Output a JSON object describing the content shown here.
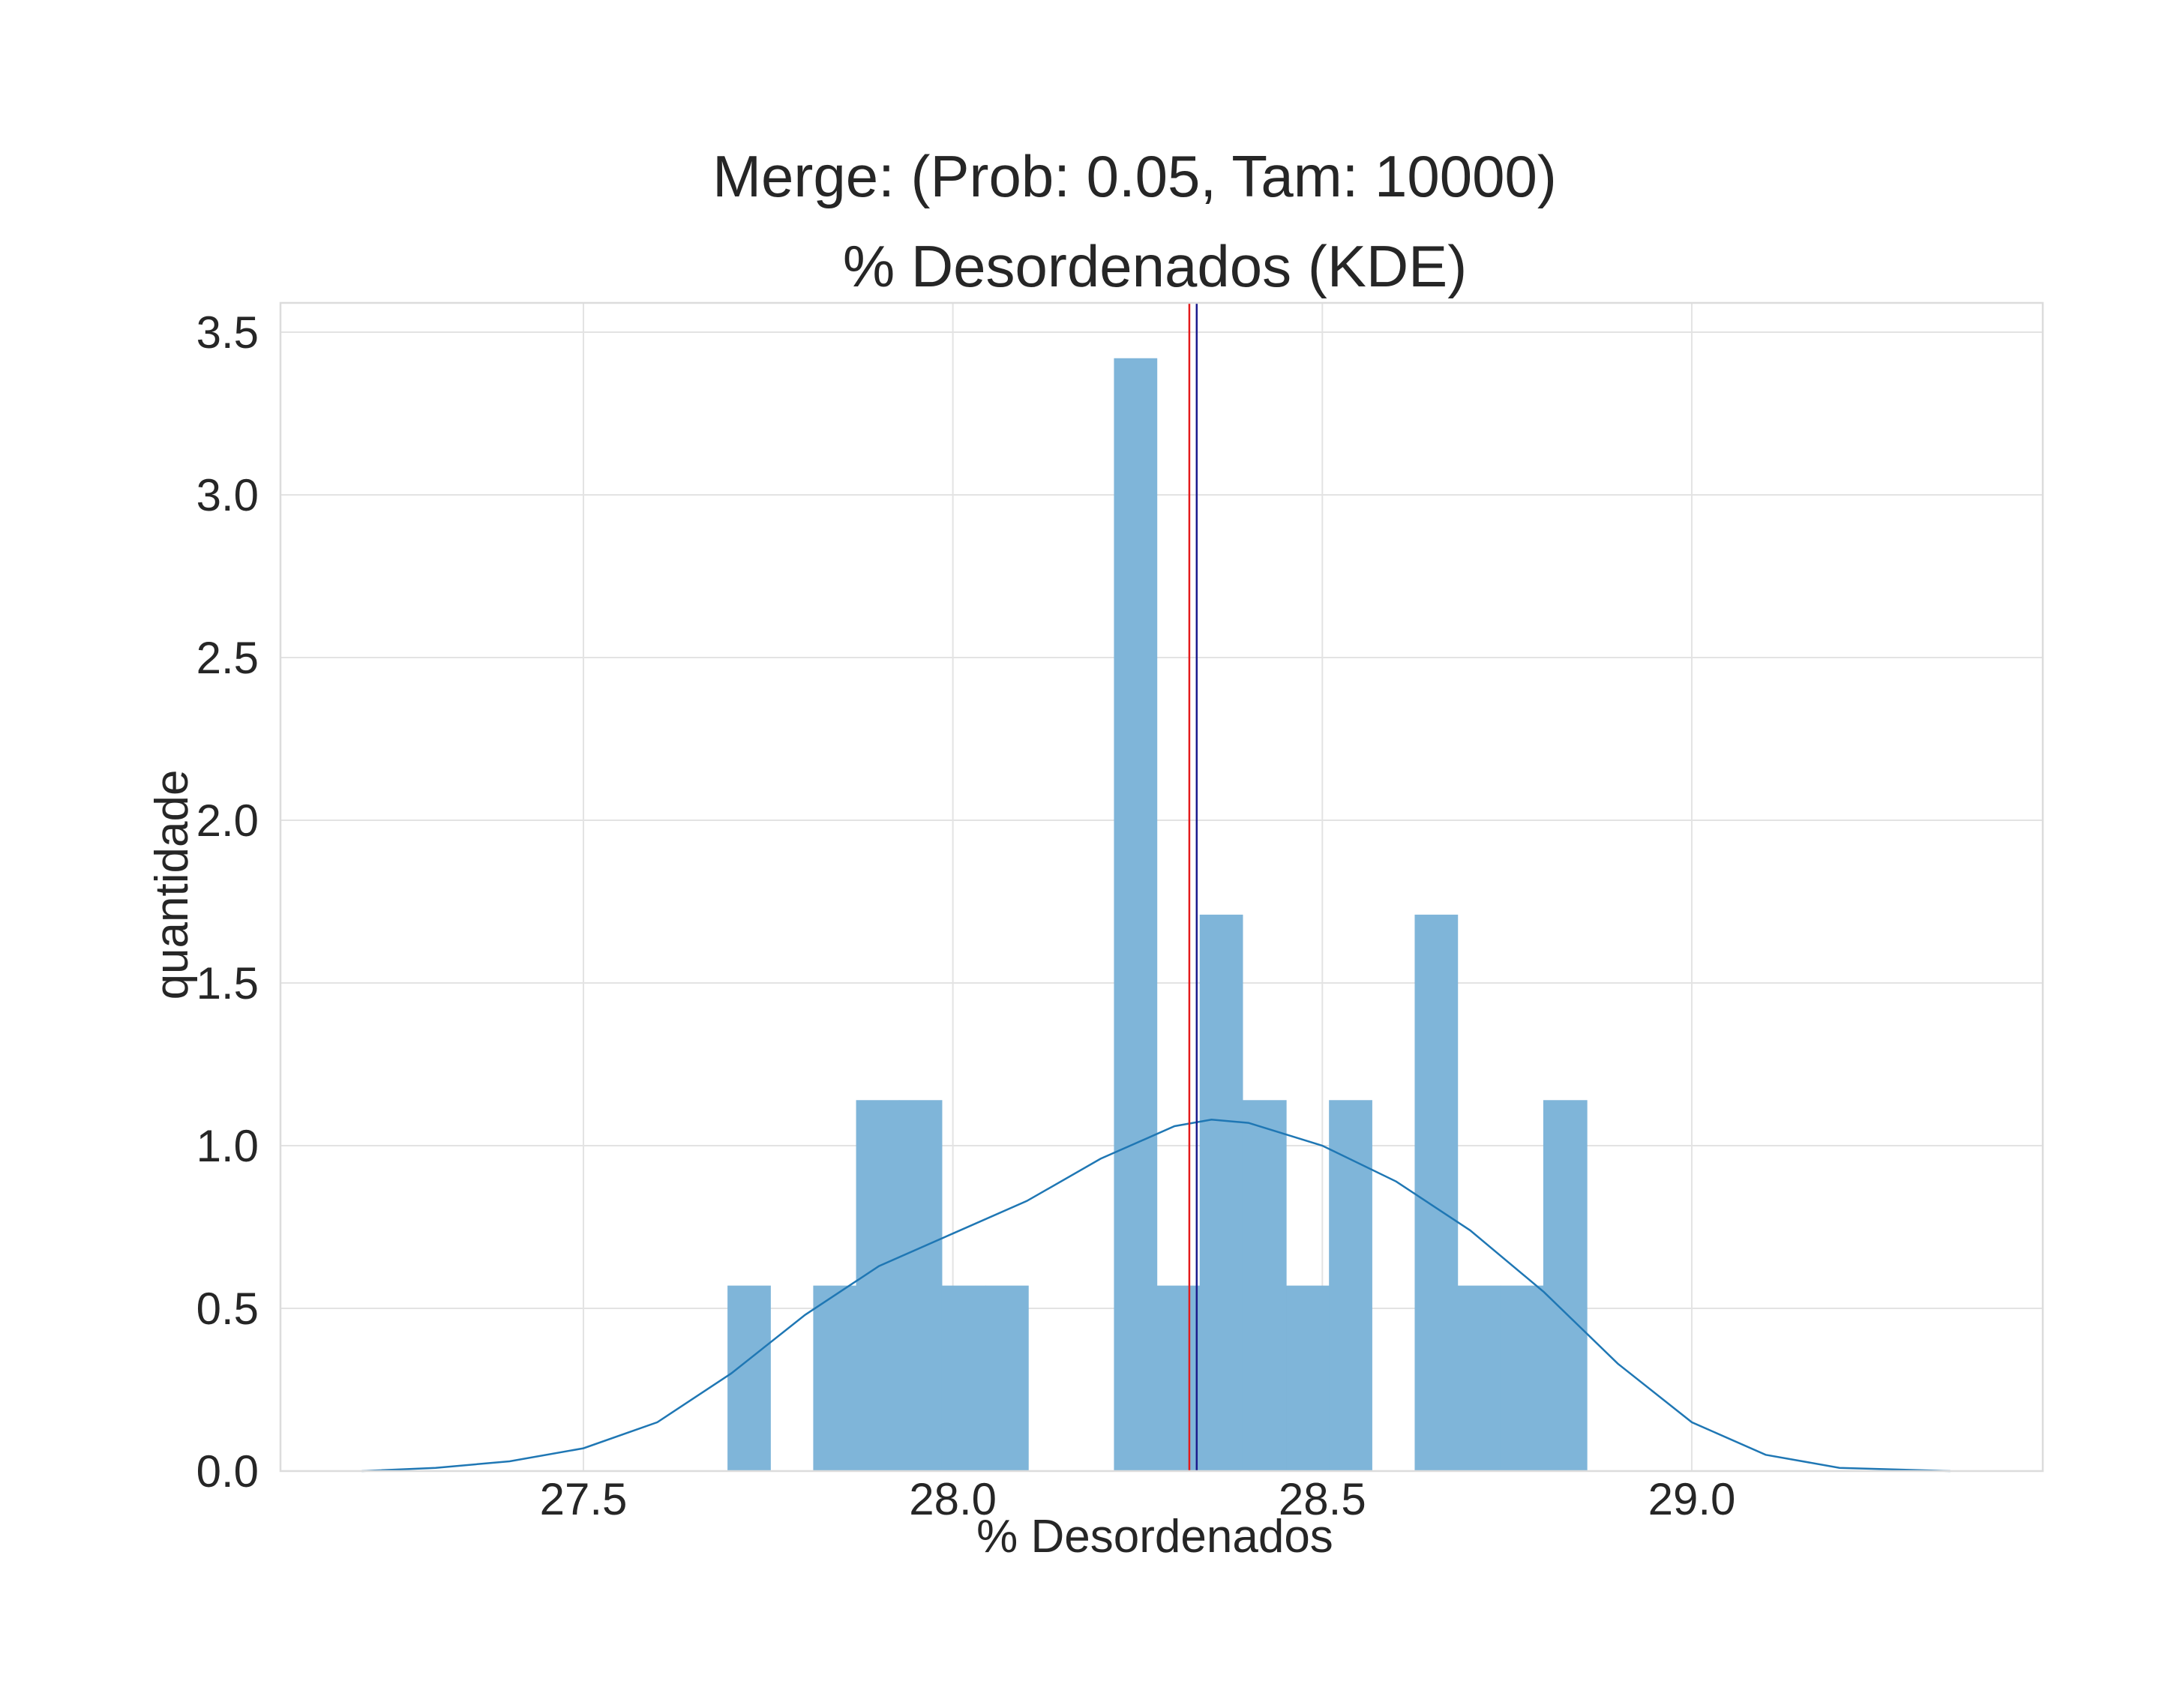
{
  "chart_data": {
    "type": "bar",
    "title": "Merge: (Prob: 0.05, Tam: 10000)",
    "subtitle": "% Desordenados (KDE)",
    "xlabel": "% Desordenados",
    "ylabel": "quantidade",
    "xlim": [
      27.09,
      29.475
    ],
    "ylim": [
      0.0,
      3.59
    ],
    "x_ticks": [
      {
        "value": 27.5,
        "label": "27.5"
      },
      {
        "value": 28.0,
        "label": "28.0"
      },
      {
        "value": 28.5,
        "label": "28.5"
      },
      {
        "value": 29.0,
        "label": "29.0"
      }
    ],
    "y_ticks": [
      {
        "value": 0.0,
        "label": "0.0"
      },
      {
        "value": 0.5,
        "label": "0.5"
      },
      {
        "value": 1.0,
        "label": "1.0"
      },
      {
        "value": 1.5,
        "label": "1.5"
      },
      {
        "value": 2.0,
        "label": "2.0"
      },
      {
        "value": 2.5,
        "label": "2.5"
      },
      {
        "value": 3.0,
        "label": "3.0"
      },
      {
        "value": 3.5,
        "label": "3.5"
      }
    ],
    "grid": true,
    "histogram": {
      "color": "#7fb5d9",
      "bins": [
        {
          "x0": 27.695,
          "x1": 27.753,
          "value": 0.57
        },
        {
          "x0": 27.811,
          "x1": 27.869,
          "value": 0.57
        },
        {
          "x0": 27.869,
          "x1": 27.927,
          "value": 1.14
        },
        {
          "x0": 27.927,
          "x1": 27.985,
          "value": 1.14
        },
        {
          "x0": 27.985,
          "x1": 28.044,
          "value": 0.57
        },
        {
          "x0": 28.044,
          "x1": 28.102,
          "value": 0.57
        },
        {
          "x0": 28.218,
          "x1": 28.276,
          "value": 3.42
        },
        {
          "x0": 28.276,
          "x1": 28.334,
          "value": 0.57
        },
        {
          "x0": 28.334,
          "x1": 28.392,
          "value": 1.71
        },
        {
          "x0": 28.392,
          "x1": 28.451,
          "value": 1.14
        },
        {
          "x0": 28.451,
          "x1": 28.509,
          "value": 0.57
        },
        {
          "x0": 28.509,
          "x1": 28.567,
          "value": 1.14
        },
        {
          "x0": 28.625,
          "x1": 28.683,
          "value": 1.71
        },
        {
          "x0": 28.683,
          "x1": 28.741,
          "value": 0.57
        },
        {
          "x0": 28.741,
          "x1": 28.799,
          "value": 0.57
        },
        {
          "x0": 28.799,
          "x1": 28.858,
          "value": 1.14
        }
      ]
    },
    "kde": {
      "color": "#1f77b4",
      "x": [
        27.2,
        27.3,
        27.4,
        27.5,
        27.6,
        27.7,
        27.8,
        27.9,
        28.0,
        28.1,
        28.2,
        28.3,
        28.35,
        28.4,
        28.5,
        28.6,
        28.7,
        28.8,
        28.9,
        29.0,
        29.1,
        29.2,
        29.35
      ],
      "y": [
        0.0,
        0.01,
        0.03,
        0.07,
        0.15,
        0.3,
        0.48,
        0.63,
        0.73,
        0.83,
        0.96,
        1.06,
        1.08,
        1.07,
        1.0,
        0.89,
        0.74,
        0.55,
        0.33,
        0.15,
        0.05,
        0.01,
        0.0
      ]
    },
    "vertical_lines": [
      {
        "x": 28.32,
        "color": "#e31a1c"
      },
      {
        "x": 28.33,
        "color": "#1a1a8c"
      }
    ]
  }
}
